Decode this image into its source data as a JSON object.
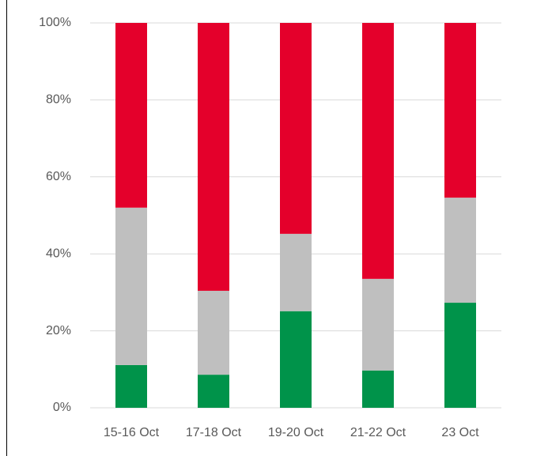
{
  "chart_data": {
    "type": "stacked_bar_100",
    "categories": [
      "15-16 Oct",
      "17-18 Oct",
      "19-20 Oct",
      "21-22 Oct",
      "23 Oct"
    ],
    "series": [
      {
        "color": "#00934a",
        "values": [
          11.1,
          8.6,
          25.1,
          9.7,
          27.3
        ]
      },
      {
        "color": "#bfbfbf",
        "values": [
          40.9,
          21.8,
          20.1,
          23.8,
          27.3
        ]
      },
      {
        "color": "#e4002b",
        "values": [
          48.0,
          69.6,
          54.8,
          66.5,
          45.4
        ]
      }
    ],
    "ylim": [
      0,
      100
    ],
    "yticks": [
      {
        "value": 0,
        "label": "0%"
      },
      {
        "value": 20,
        "label": "20%"
      },
      {
        "value": 40,
        "label": "40%"
      },
      {
        "value": 60,
        "label": "60%"
      },
      {
        "value": 80,
        "label": "80%"
      },
      {
        "value": 100,
        "label": "100%"
      }
    ],
    "grid": true
  }
}
